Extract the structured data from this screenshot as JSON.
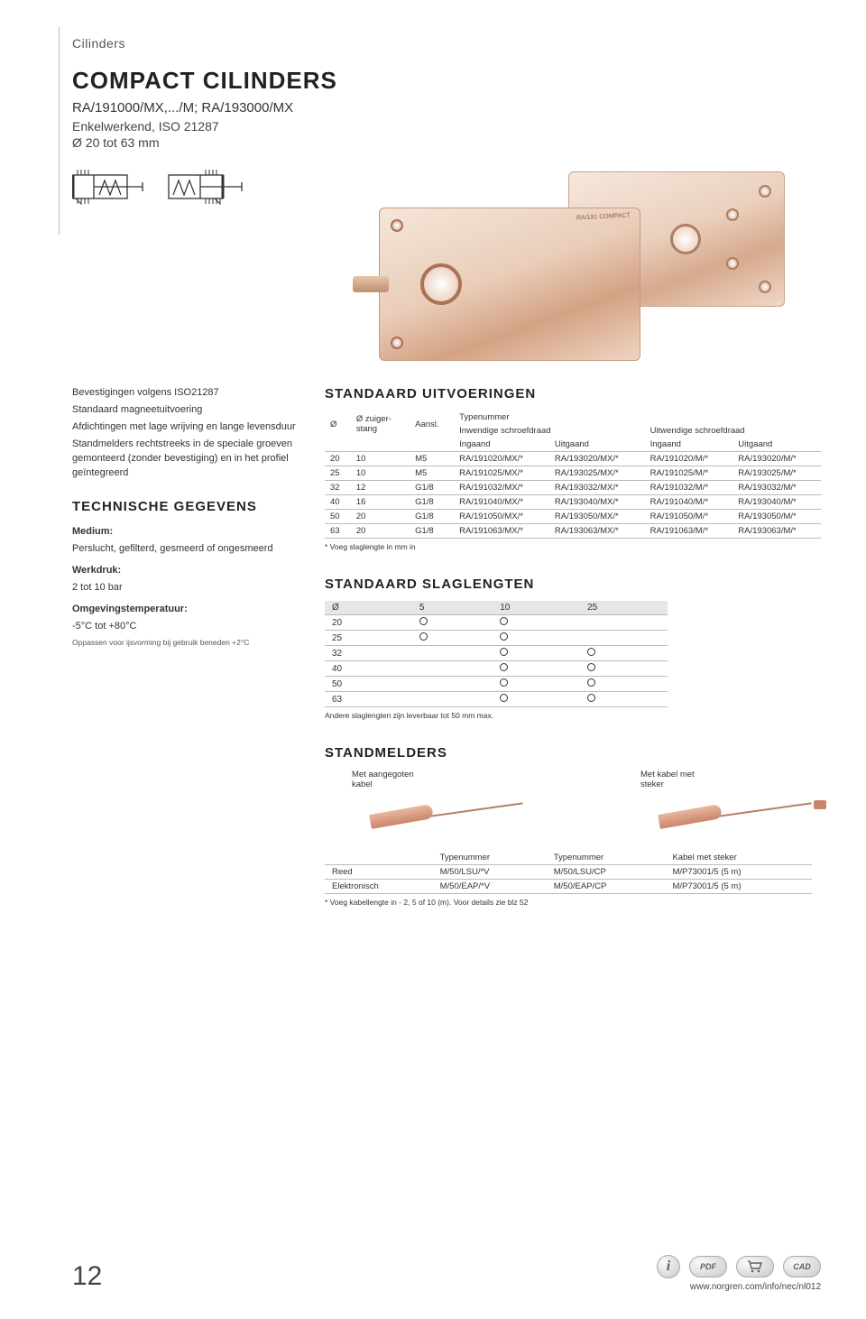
{
  "page": {
    "category": "Cilinders",
    "title": "COMPACT CILINDERS",
    "subtitle": "RA/191000/MX,.../M; RA/193000/MX",
    "subsub": "Enkelwerkend, ISO 21287",
    "diameter": "Ø 20 tot 63 mm",
    "pageNumber": "12",
    "footerUrl": "www.norgren.com/info/nec/nl012"
  },
  "left": {
    "bevestigingen": [
      "Bevestigingen volgens ISO21287",
      "Standaard magneetuitvoering",
      "Afdichtingen met lage wrijving en lange levensduur",
      "Standmelders rechtstreeks in de speciale groeven gemonteerd (zonder bevestiging) en in het profiel geïntegreerd"
    ],
    "techHead": "TECHNISCHE GEGEVENS",
    "mediumLabel": "Medium:",
    "medium": "Perslucht, gefilterd, gesmeerd of ongesmeerd",
    "werkdrukLabel": "Werkdruk:",
    "werkdruk": "2 tot 10 bar",
    "tempLabel": "Omgevingstemperatuur:",
    "temp": "-5°C tot +80°C",
    "tempFine": "Oppassen voor ijsvorming bij gebruik beneden +2°C"
  },
  "uitv": {
    "head": "STANDAARD UITVOERINGEN",
    "h": {
      "diam": "Ø",
      "zuiger": "Ø zuiger-\nstang",
      "aansl": "Aansl.",
      "typenummer": "Typenummer",
      "inw": "Inwendige schroefdraad",
      "uitw": "Uitwendige schroefdraad",
      "ingaand": "Ingaand",
      "uitgaand": "Uitgaand"
    },
    "rows": [
      {
        "d": "20",
        "z": "10",
        "a": "M5",
        "c1": "RA/191020/MX/*",
        "c2": "RA/193020/MX/*",
        "c3": "RA/191020/M/*",
        "c4": "RA/193020/M/*"
      },
      {
        "d": "25",
        "z": "10",
        "a": "M5",
        "c1": "RA/191025/MX/*",
        "c2": "RA/193025/MX/*",
        "c3": "RA/191025/M/*",
        "c4": "RA/193025/M/*"
      },
      {
        "d": "32",
        "z": "12",
        "a": "G1/8",
        "c1": "RA/191032/MX/*",
        "c2": "RA/193032/MX/*",
        "c3": "RA/191032/M/*",
        "c4": "RA/193032/M/*"
      },
      {
        "d": "40",
        "z": "16",
        "a": "G1/8",
        "c1": "RA/191040/MX/*",
        "c2": "RA/193040/MX/*",
        "c3": "RA/191040/M/*",
        "c4": "RA/193040/M/*"
      },
      {
        "d": "50",
        "z": "20",
        "a": "G1/8",
        "c1": "RA/191050/MX/*",
        "c2": "RA/193050/MX/*",
        "c3": "RA/191050/M/*",
        "c4": "RA/193050/M/*"
      },
      {
        "d": "63",
        "z": "20",
        "a": "G1/8",
        "c1": "RA/191063/MX/*",
        "c2": "RA/193063/MX/*",
        "c3": "RA/191063/M/*",
        "c4": "RA/193063/M/*"
      }
    ],
    "footnote": "* Voeg slaglengte in mm in"
  },
  "slaglen": {
    "head": "STANDAARD SLAGLENGTEN",
    "cols": [
      "Ø",
      "5",
      "10",
      "25"
    ],
    "rows": [
      {
        "d": "20",
        "v": [
          true,
          true,
          false
        ]
      },
      {
        "d": "25",
        "v": [
          true,
          true,
          false
        ]
      },
      {
        "d": "32",
        "v": [
          false,
          true,
          true
        ]
      },
      {
        "d": "40",
        "v": [
          false,
          true,
          true
        ]
      },
      {
        "d": "50",
        "v": [
          false,
          true,
          true
        ]
      },
      {
        "d": "63",
        "v": [
          false,
          true,
          true
        ]
      }
    ],
    "footnote": "Andere slaglengten zijn leverbaar tot 50 mm max."
  },
  "stand": {
    "head": "STANDMELDERS",
    "label1": "Met aangegoten\nkabel",
    "label2": "Met kabel met\nsteker",
    "cols": [
      "",
      "Typenummer",
      "Typenummer",
      "Kabel met steker"
    ],
    "rows": [
      {
        "n": "Reed",
        "a": "M/50/LSU/*V",
        "b": "M/50/LSU/CP",
        "c": "M/P73001/5 (5 m)"
      },
      {
        "n": "Elektronisch",
        "a": "M/50/EAP/*V",
        "b": "M/50/EAP/CP",
        "c": "M/P73001/5 (5 m)"
      }
    ],
    "footnote": "* Voeg kabellengte in - 2, 5 of 10 (m). Voor details zie blz 52"
  },
  "footerIcons": {
    "i": "i",
    "pdf": "PDF",
    "cart": "🛒",
    "cad": "CAD"
  }
}
